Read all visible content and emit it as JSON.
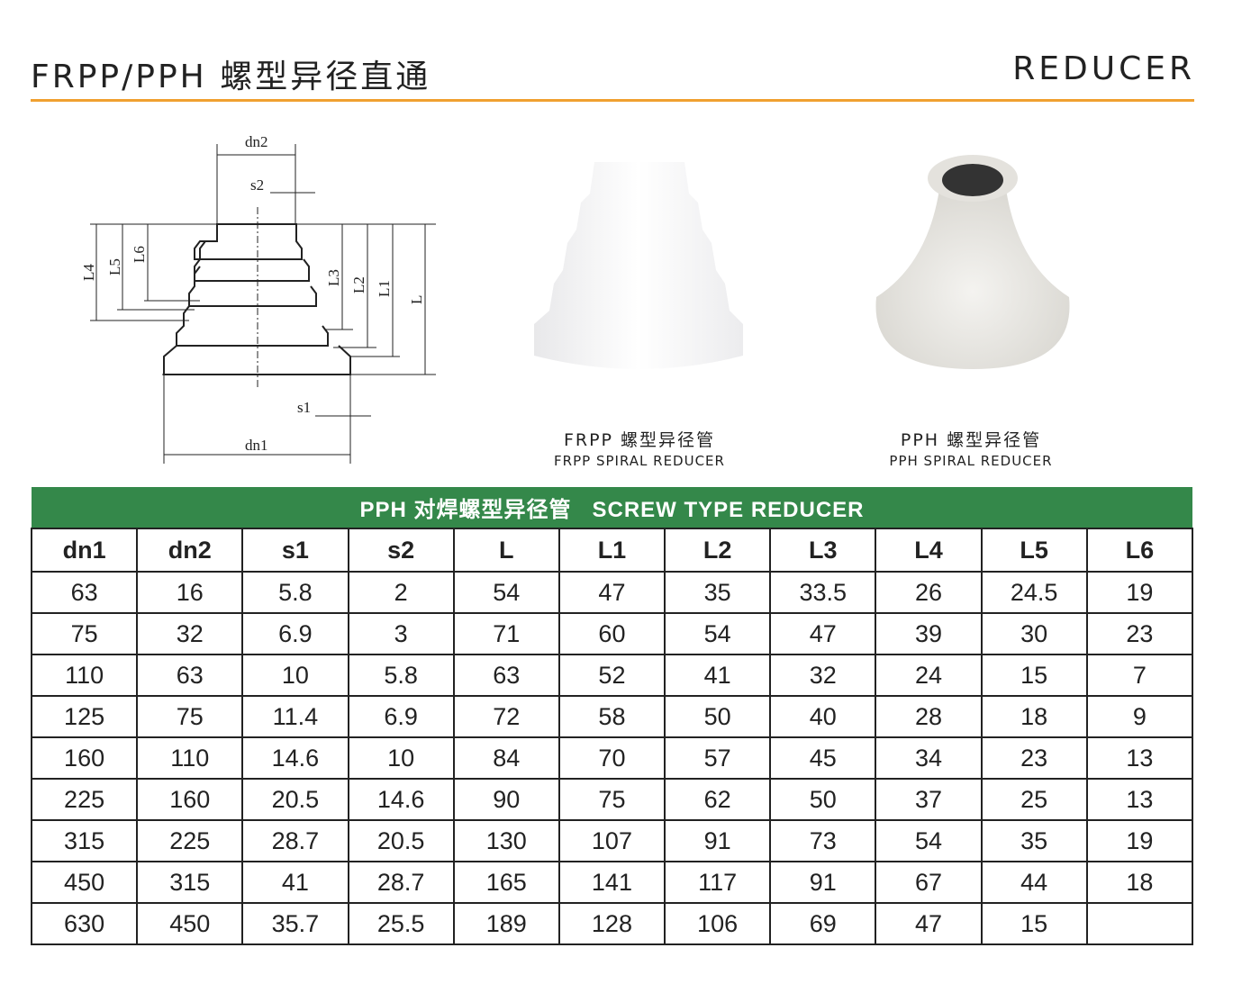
{
  "header": {
    "title_cn": "FRPP/PPH 螺型异径直通",
    "title_en": "REDUCER",
    "accent": "#f0a030"
  },
  "diagram": {
    "labels": {
      "dn1": "dn1",
      "dn2": "dn2",
      "s1": "s1",
      "s2": "s2",
      "L": "L",
      "L1": "L1",
      "L2": "L2",
      "L3": "L3",
      "L4": "L4",
      "L5": "L5",
      "L6": "L6"
    }
  },
  "products": [
    {
      "name_cn": "FRPP 螺型异径管",
      "name_en": "FRPP SPIRAL REDUCER"
    },
    {
      "name_cn": "PPH 螺型异径管",
      "name_en": "PPH SPIRAL REDUCER"
    }
  ],
  "table": {
    "title": "PPH 对焊螺型异径管   SCREW TYPE REDUCER",
    "banner_color": "#34884a",
    "columns": [
      "dn1",
      "dn2",
      "s1",
      "s2",
      "L",
      "L1",
      "L2",
      "L3",
      "L4",
      "L5",
      "L6"
    ],
    "rows": [
      [
        "63",
        "16",
        "5.8",
        "2",
        "54",
        "47",
        "35",
        "33.5",
        "26",
        "24.5",
        "19"
      ],
      [
        "75",
        "32",
        "6.9",
        "3",
        "71",
        "60",
        "54",
        "47",
        "39",
        "30",
        "23"
      ],
      [
        "110",
        "63",
        "10",
        "5.8",
        "63",
        "52",
        "41",
        "32",
        "24",
        "15",
        "7"
      ],
      [
        "125",
        "75",
        "11.4",
        "6.9",
        "72",
        "58",
        "50",
        "40",
        "28",
        "18",
        "9"
      ],
      [
        "160",
        "110",
        "14.6",
        "10",
        "84",
        "70",
        "57",
        "45",
        "34",
        "23",
        "13"
      ],
      [
        "225",
        "160",
        "20.5",
        "14.6",
        "90",
        "75",
        "62",
        "50",
        "37",
        "25",
        "13"
      ],
      [
        "315",
        "225",
        "28.7",
        "20.5",
        "130",
        "107",
        "91",
        "73",
        "54",
        "35",
        "19"
      ],
      [
        "450",
        "315",
        "41",
        "28.7",
        "165",
        "141",
        "117",
        "91",
        "67",
        "44",
        "18"
      ],
      [
        "630",
        "450",
        "35.7",
        "25.5",
        "189",
        "128",
        "106",
        "69",
        "47",
        "15",
        ""
      ]
    ]
  }
}
